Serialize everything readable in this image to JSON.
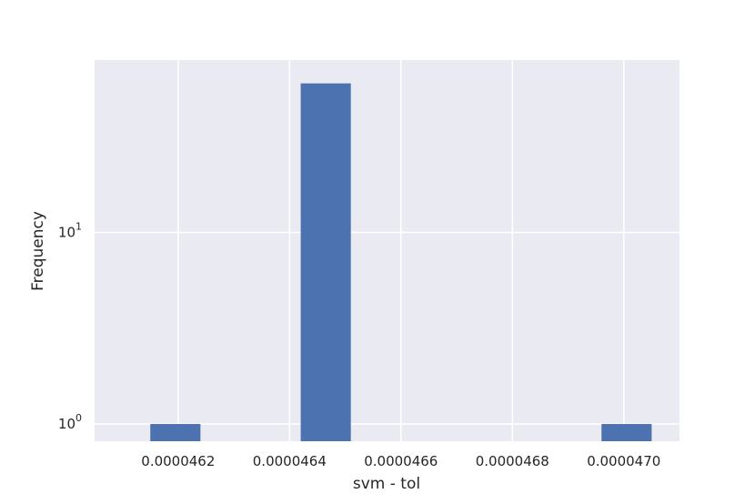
{
  "chart_data": {
    "type": "histogram",
    "xlabel": "svm - tol",
    "ylabel": "Frequency",
    "y_scale": "log",
    "xlim": [
      4.605e-05,
      4.71e-05
    ],
    "ylim_log10": [
      -0.09,
      1.9
    ],
    "grid": true,
    "background_color": "#eaeaf2",
    "grid_color": "#ffffff",
    "bar_color": "#4c72b0",
    "x_ticks": [
      {
        "value": 4.62e-05,
        "label": "0.0000462"
      },
      {
        "value": 4.64e-05,
        "label": "0.0000464"
      },
      {
        "value": 4.66e-05,
        "label": "0.0000466"
      },
      {
        "value": 4.68e-05,
        "label": "0.0000468"
      },
      {
        "value": 4.7e-05,
        "label": "0.0000470"
      }
    ],
    "y_ticks": [
      {
        "value": 1,
        "base": "10",
        "exponent": "0"
      },
      {
        "value": 10,
        "base": "10",
        "exponent": "1"
      }
    ],
    "bins": [
      {
        "x0": 4.615e-05,
        "x1": 4.624e-05,
        "value": 1
      },
      {
        "x0": 4.642e-05,
        "x1": 4.651e-05,
        "value": 60
      },
      {
        "x0": 4.696e-05,
        "x1": 4.705e-05,
        "value": 1
      }
    ]
  }
}
